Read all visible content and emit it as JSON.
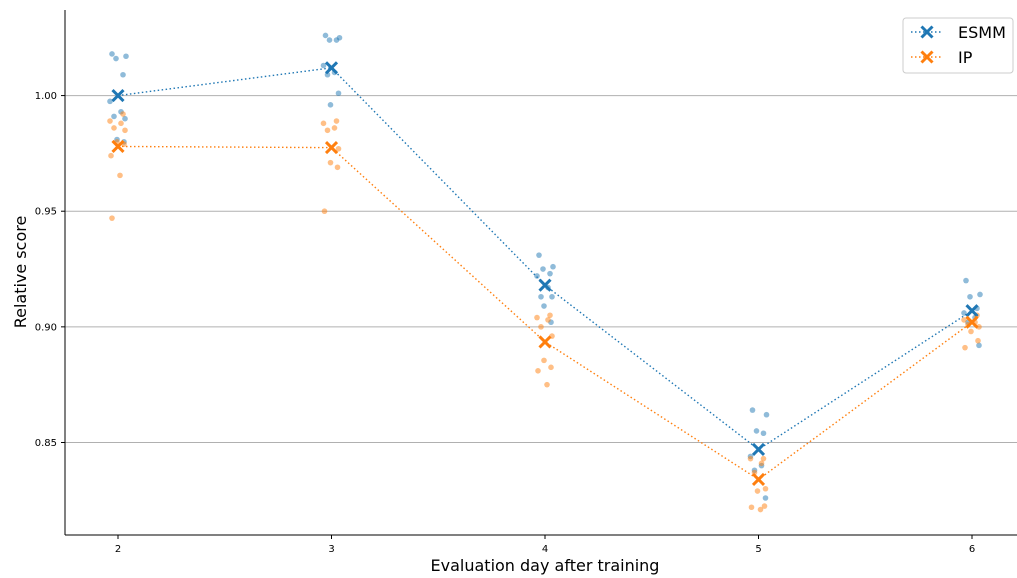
{
  "chart_data": {
    "type": "scatter",
    "xlabel": "Evaluation day after training",
    "ylabel": "Relative score",
    "x_categories": [
      2,
      3,
      4,
      5,
      6
    ],
    "yticks": [
      "0.85",
      "0.90",
      "0.95",
      "1.00"
    ],
    "ylim": [
      0.81,
      1.037
    ],
    "grid": "horizontal",
    "legend_position": "top-right",
    "series": [
      {
        "name": "ESMM",
        "color": "#1f77b4",
        "line_style": "dotted",
        "mean": [
          1.0,
          1.012,
          0.918,
          0.847,
          0.907
        ],
        "points": [
          [
            1.018,
            1.017,
            1.016,
            1.009,
            0.9975,
            0.993,
            0.991,
            0.99,
            0.981,
            0.98
          ],
          [
            1.026,
            1.025,
            1.024,
            1.024,
            1.013,
            1.01,
            1.009,
            1.001,
            0.996
          ],
          [
            0.931,
            0.926,
            0.925,
            0.923,
            0.922,
            0.917,
            0.913,
            0.913,
            0.909,
            0.902
          ],
          [
            0.864,
            0.862,
            0.855,
            0.854,
            0.844,
            0.84,
            0.838,
            0.826
          ],
          [
            0.92,
            0.914,
            0.913,
            0.908,
            0.906,
            0.904,
            0.902,
            0.892
          ]
        ]
      },
      {
        "name": "IP",
        "color": "#ff7f0e",
        "line_style": "dotted",
        "mean": [
          0.978,
          0.9775,
          0.8935,
          0.834,
          0.902
        ],
        "points": [
          [
            0.992,
            0.989,
            0.988,
            0.986,
            0.985,
            0.98,
            0.979,
            0.974,
            0.9655,
            0.947
          ],
          [
            0.989,
            0.988,
            0.986,
            0.985,
            0.977,
            0.971,
            0.969,
            0.95
          ],
          [
            0.905,
            0.904,
            0.903,
            0.9,
            0.896,
            0.8855,
            0.8825,
            0.881,
            0.875
          ],
          [
            0.843,
            0.843,
            0.841,
            0.837,
            0.83,
            0.829,
            0.8225,
            0.822,
            0.821
          ],
          [
            0.905,
            0.903,
            0.902,
            0.901,
            0.9,
            0.898,
            0.894,
            0.891
          ]
        ]
      }
    ]
  }
}
